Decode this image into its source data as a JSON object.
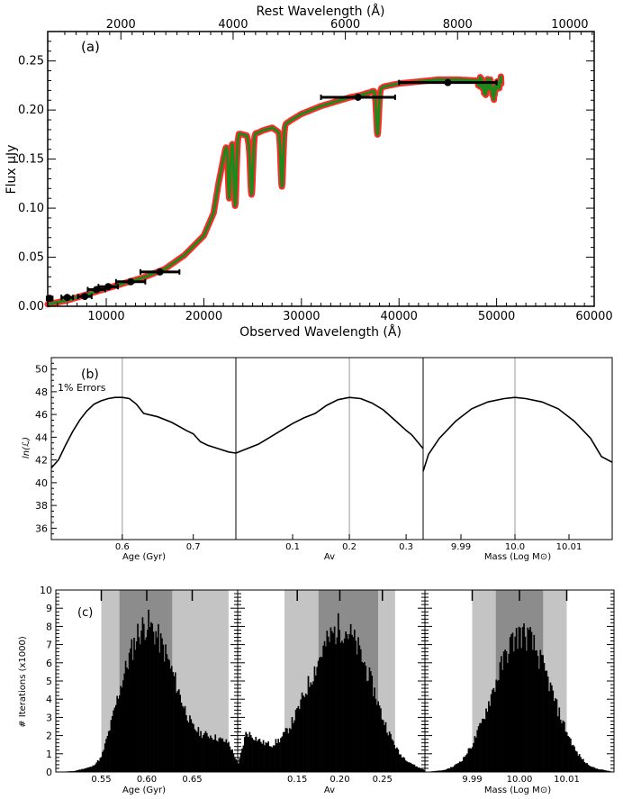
{
  "figure": {
    "panel_a": {
      "label": "(a)",
      "xlabel": "Observed Wavelength (Å)",
      "top_xlabel": "Rest Wavelength (Å)",
      "ylabel": "Flux μJy"
    },
    "panel_b": {
      "label": "(b)",
      "note": "1% Errors",
      "ylabel": "ln(ℒ)",
      "xlabels": [
        "Age (Gyr)",
        "Av",
        "Mass (Log M⊙)"
      ]
    },
    "panel_c": {
      "label": "(c)",
      "ylabel": "# Iterations (x1000)",
      "xlabels": [
        "Age (Gyr)",
        "Av",
        "Mass (Log M⊙)"
      ]
    }
  },
  "chart_data": [
    {
      "type": "line",
      "panel": "a",
      "xlabel": "Observed Wavelength (Å)",
      "ylabel": "Flux μJy",
      "top_xlabel": "Rest Wavelength (Å)",
      "xlim": [
        4000,
        60000
      ],
      "ylim": [
        0,
        0.28
      ],
      "xticks": [
        10000,
        20000,
        30000,
        40000,
        50000,
        60000
      ],
      "yticks": [
        0.0,
        0.05,
        0.1,
        0.15,
        0.2,
        0.25
      ],
      "top_xticks": [
        2000,
        4000,
        6000,
        8000,
        10000
      ],
      "redshift_factor": 5.75,
      "spectrum": {
        "x": [
          4000,
          6000,
          8000,
          10000,
          12000,
          14000,
          16000,
          18000,
          20000,
          21000,
          21500,
          22000,
          22400,
          22600,
          23000,
          23300,
          23600,
          24000,
          24400,
          24800,
          25200,
          25600,
          26000,
          27000,
          27600,
          28000,
          28400,
          29000,
          30000,
          32000,
          34000,
          35000,
          36000,
          37000,
          37500,
          37800,
          38100,
          38500,
          40000,
          42000,
          44000,
          46000,
          48000,
          49000,
          49500,
          50000,
          50500
        ],
        "y": [
          0.002,
          0.006,
          0.012,
          0.018,
          0.024,
          0.03,
          0.038,
          0.052,
          0.072,
          0.095,
          0.125,
          0.15,
          0.17,
          0.16,
          0.177,
          0.17,
          0.176,
          0.175,
          0.174,
          0.16,
          0.176,
          0.177,
          0.179,
          0.182,
          0.178,
          0.182,
          0.186,
          0.19,
          0.196,
          0.204,
          0.21,
          0.213,
          0.215,
          0.218,
          0.22,
          0.22,
          0.222,
          0.224,
          0.227,
          0.229,
          0.231,
          0.231,
          0.23,
          0.227,
          0.225,
          0.226,
          0.229
        ]
      },
      "absorption_dips": [
        {
          "x": 22600,
          "depth": 0.05
        },
        {
          "x": 23200,
          "depth": 0.07
        },
        {
          "x": 24900,
          "depth": 0.05
        },
        {
          "x": 28000,
          "depth": 0.06
        },
        {
          "x": 37800,
          "depth": 0.045
        },
        {
          "x": 48800,
          "depth": 0.008
        },
        {
          "x": 49700,
          "depth": 0.01
        }
      ],
      "photometry": [
        {
          "x": 4200,
          "y": 0.008,
          "xerr": 300
        },
        {
          "x": 6000,
          "y": 0.009,
          "xerr": 600
        },
        {
          "x": 7800,
          "y": 0.01,
          "xerr": 700
        },
        {
          "x": 9000,
          "y": 0.017,
          "xerr": 900
        },
        {
          "x": 10200,
          "y": 0.02,
          "xerr": 1000
        },
        {
          "x": 12500,
          "y": 0.025,
          "xerr": 1500
        },
        {
          "x": 15500,
          "y": 0.035,
          "xerr": 2000
        },
        {
          "x": 35800,
          "y": 0.213,
          "xerr": 3800
        },
        {
          "x": 45000,
          "y": 0.228,
          "xerr": 5000
        }
      ],
      "colors": {
        "spectrum": "#1a8a1a",
        "envelope": "#ff2a2a",
        "points": "#000000"
      }
    },
    {
      "type": "line",
      "panel": "b",
      "ylabel": "ln(ℒ)",
      "ylim": [
        35,
        51
      ],
      "yticks": [
        36,
        38,
        40,
        42,
        44,
        46,
        48,
        50
      ],
      "subplots": [
        {
          "xlabel": "Age (Gyr)",
          "xlim": [
            0.5,
            0.76
          ],
          "xticks": [
            0.6,
            0.7
          ],
          "best": 0.6,
          "x": [
            0.5,
            0.51,
            0.52,
            0.53,
            0.54,
            0.55,
            0.56,
            0.57,
            0.58,
            0.59,
            0.6,
            0.61,
            0.62,
            0.63,
            0.65,
            0.67,
            0.69,
            0.7,
            0.71,
            0.72,
            0.73,
            0.74,
            0.75,
            0.76
          ],
          "y": [
            41.3,
            42.0,
            43.3,
            44.5,
            45.5,
            46.3,
            46.9,
            47.2,
            47.4,
            47.5,
            47.5,
            47.4,
            46.9,
            46.1,
            45.8,
            45.3,
            44.6,
            44.3,
            43.6,
            43.3,
            43.1,
            42.9,
            42.7,
            42.6
          ]
        },
        {
          "xlabel": "Av",
          "xlim": [
            0.0,
            0.33
          ],
          "xticks": [
            0.1,
            0.2,
            0.3
          ],
          "best": 0.2,
          "x": [
            0.0,
            0.02,
            0.04,
            0.06,
            0.08,
            0.1,
            0.12,
            0.14,
            0.16,
            0.18,
            0.2,
            0.22,
            0.24,
            0.26,
            0.28,
            0.3,
            0.31,
            0.32,
            0.33
          ],
          "y": [
            42.6,
            43.0,
            43.4,
            44.0,
            44.6,
            45.2,
            45.7,
            46.1,
            46.8,
            47.3,
            47.5,
            47.4,
            47.0,
            46.4,
            45.5,
            44.6,
            44.2,
            43.6,
            43.0
          ]
        },
        {
          "xlabel": "Mass (Log M⊙)",
          "xlim": [
            9.983,
            10.018
          ],
          "xticks": [
            9.99,
            10.0,
            10.01
          ],
          "best": 10.0,
          "x": [
            9.983,
            9.984,
            9.986,
            9.989,
            9.992,
            9.995,
            9.998,
            10.0,
            10.002,
            10.005,
            10.008,
            10.011,
            10.014,
            10.016,
            10.018
          ],
          "y": [
            41.0,
            42.5,
            43.9,
            45.4,
            46.5,
            47.1,
            47.4,
            47.5,
            47.4,
            47.1,
            46.5,
            45.4,
            43.9,
            42.3,
            41.8
          ]
        }
      ]
    },
    {
      "type": "bar",
      "panel": "c",
      "ylabel": "# Iterations (x1000)",
      "ylim": [
        0,
        10
      ],
      "yticks": [
        0,
        1,
        2,
        3,
        4,
        5,
        6,
        7,
        8,
        9,
        10
      ],
      "subplots": [
        {
          "xlabel": "Age (Gyr)",
          "xlim": [
            0.5,
            0.7
          ],
          "xticks": [
            0.55,
            0.6,
            0.65
          ],
          "dark_band": [
            0.57,
            0.628
          ],
          "light_band": [
            0.55,
            0.69
          ],
          "x": [
            0.5,
            0.52,
            0.54,
            0.55,
            0.56,
            0.57,
            0.58,
            0.59,
            0.6,
            0.61,
            0.62,
            0.63,
            0.64,
            0.65,
            0.66,
            0.67,
            0.68,
            0.69,
            0.7
          ],
          "y": [
            0,
            0.05,
            0.3,
            0.8,
            2.5,
            4.5,
            6.2,
            7.6,
            8.2,
            7.6,
            6.6,
            5.2,
            3.7,
            2.5,
            2.1,
            2.0,
            1.8,
            1.6,
            0.5
          ]
        },
        {
          "xlabel": "Av",
          "xlim": [
            0.08,
            0.3
          ],
          "xticks": [
            0.15,
            0.2,
            0.25
          ],
          "dark_band": [
            0.175,
            0.245
          ],
          "light_band": [
            0.135,
            0.265
          ],
          "x": [
            0.08,
            0.09,
            0.1,
            0.11,
            0.12,
            0.13,
            0.14,
            0.15,
            0.16,
            0.17,
            0.18,
            0.19,
            0.2,
            0.21,
            0.22,
            0.23,
            0.24,
            0.25,
            0.26,
            0.27,
            0.28,
            0.29,
            0.3
          ],
          "y": [
            0.3,
            2.2,
            1.9,
            1.6,
            1.5,
            1.8,
            2.4,
            3.3,
            4.5,
            5.6,
            6.7,
            7.5,
            8.0,
            7.7,
            6.9,
            5.8,
            4.5,
            3.0,
            1.9,
            1.0,
            0.6,
            0.3,
            0.1
          ]
        },
        {
          "xlabel": "Mass (Log M⊙)",
          "xlim": [
            9.98,
            10.02
          ],
          "xticks": [
            9.99,
            10.0,
            10.01
          ],
          "dark_band": [
            9.995,
            10.005
          ],
          "light_band": [
            9.99,
            10.01
          ],
          "x": [
            9.98,
            9.984,
            9.986,
            9.988,
            9.99,
            9.992,
            9.994,
            9.996,
            9.998,
            10.0,
            10.002,
            10.004,
            10.006,
            10.008,
            10.01,
            10.012,
            10.014,
            10.016,
            10.02
          ],
          "y": [
            0,
            0.1,
            0.3,
            0.7,
            1.5,
            2.7,
            4.2,
            5.7,
            7.0,
            7.6,
            7.4,
            6.4,
            5.1,
            3.5,
            2.2,
            1.1,
            0.5,
            0.2,
            0
          ]
        }
      ],
      "colors": {
        "bars": "#000000",
        "dark_band": "#8c8c8c",
        "light_band": "#c4c4c4"
      }
    }
  ]
}
